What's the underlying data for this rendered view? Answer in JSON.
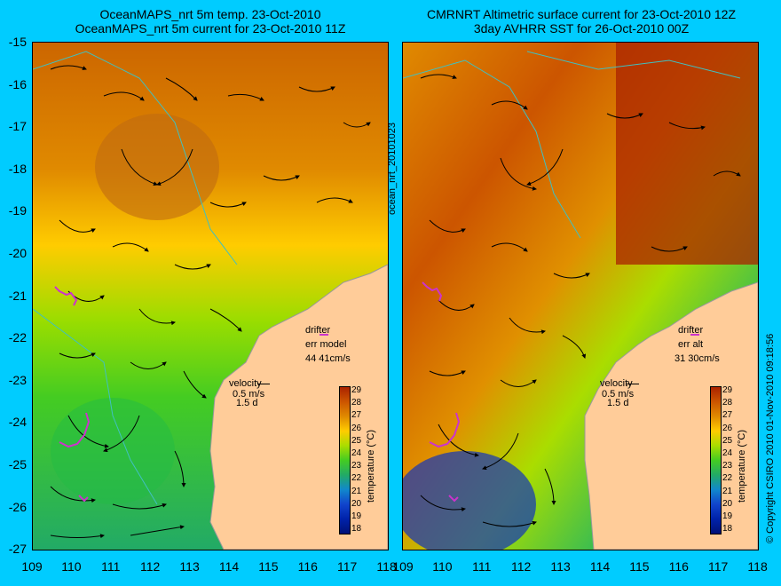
{
  "left_panel": {
    "title_line1": "OceanMAPS_nrt 5m temp. 23-Oct-2010",
    "title_line2": "OceanMAPS_nrt 5m current for 23-Oct-2010 11Z",
    "drifter_label": "drifter",
    "err_label": "err model",
    "err_values": "44 41cm/s",
    "velocity_label": "velocity",
    "velocity_scale": "0.5 m/s",
    "velocity_time": "1.5 d"
  },
  "right_panel": {
    "title_line1": "CMRNRT Altimetric surface current for 23-Oct-2010 12Z",
    "title_line2": "3day AVHRR SST for 26-Oct-2010 00Z",
    "drifter_label": "drifter",
    "err_label": "err alt",
    "err_values": "31 30cm/s",
    "velocity_label": "velocity",
    "velocity_scale": "0.5 m/s",
    "velocity_time": "1.5 d"
  },
  "vertical_label": "ocean_nrt_20101023",
  "copyright": "© Copyright CSIRO 2010   01-Nov-2010 09:18:56",
  "colorbar": {
    "title": "temperature (°C)",
    "ticks": [
      "29",
      "28",
      "27",
      "26",
      "25",
      "24",
      "23",
      "22",
      "21",
      "20",
      "19",
      "18"
    ]
  },
  "axes": {
    "lat_labels": [
      "-15",
      "-16",
      "-17",
      "-18",
      "-19",
      "-20",
      "-21",
      "-22",
      "-23",
      "-24",
      "-25",
      "-26",
      "-27"
    ],
    "lon_labels": [
      "109",
      "110",
      "111",
      "112",
      "113",
      "114",
      "115",
      "116",
      "117",
      "118"
    ]
  },
  "colors": {
    "background": "#00ccff",
    "land": "#ffcc99",
    "coastline": "#40c0c0",
    "drifter": "#cc33cc"
  }
}
